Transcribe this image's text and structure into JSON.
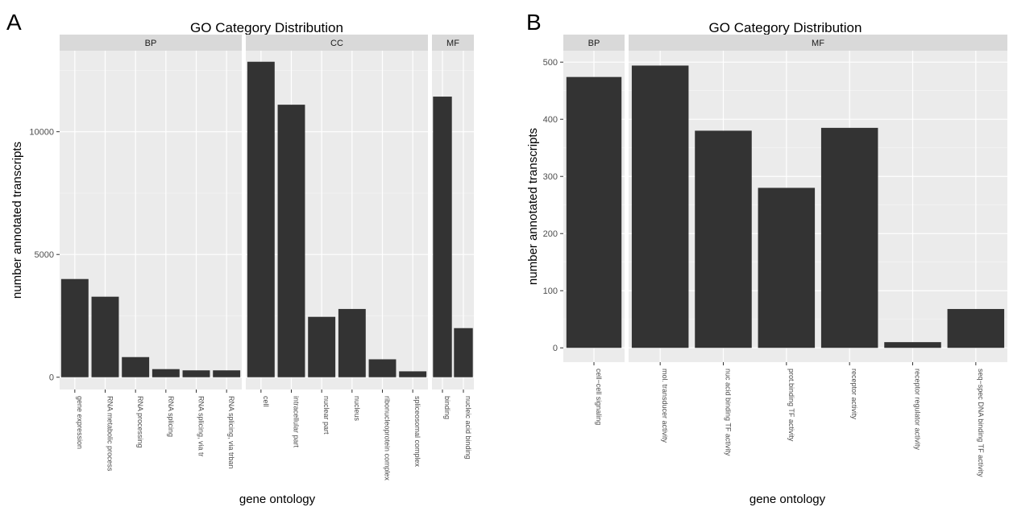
{
  "chart_data": [
    {
      "type": "bar",
      "panel_label": "A",
      "title": "GO Category Distribution",
      "xlabel": "gene ontology",
      "ylabel": "number annotated transcripts",
      "ylim": [
        -500,
        13300
      ],
      "yticks": [
        0,
        5000,
        10000
      ],
      "ytick_labels": [
        "0",
        "5000",
        "10000"
      ],
      "grid": true,
      "facets": [
        {
          "name": "BP",
          "categories": [
            "gene expression",
            "RNA metabolic process",
            "RNA processing",
            "RNA splicing",
            "RNA splicing, via tr",
            "RNA splicing, via trban"
          ],
          "values": [
            4000,
            3280,
            820,
            330,
            280,
            280
          ]
        },
        {
          "name": "CC",
          "categories": [
            "cell",
            "intracellular part",
            "nuclear part",
            "nucleus",
            "ribonucleoprotein complex",
            "spliceosomal complex"
          ],
          "values": [
            12850,
            11100,
            2460,
            2780,
            730,
            240
          ]
        },
        {
          "name": "MF",
          "categories": [
            "binding",
            "nucleic acid binding"
          ],
          "values": [
            11430,
            2000
          ]
        }
      ]
    },
    {
      "type": "bar",
      "panel_label": "B",
      "title": "GO Category Distribution",
      "xlabel": "gene ontology",
      "ylabel": "number annotated transcripts",
      "ylim": [
        -25,
        520
      ],
      "yticks": [
        0,
        100,
        200,
        300,
        400,
        500
      ],
      "ytick_labels": [
        "0",
        "100",
        "200",
        "300",
        "400",
        "500"
      ],
      "grid": true,
      "facets": [
        {
          "name": "BP",
          "categories": [
            "cell−cell signaling"
          ],
          "values": [
            474
          ]
        },
        {
          "name": "MF",
          "categories": [
            "mol. transducer activity",
            "nuc acid binding TF activity",
            "prot.binding TF activity",
            "receptor activity",
            "receptor regulator activity",
            "seq−spec DNA binding TF activity"
          ],
          "values": [
            494,
            380,
            280,
            385,
            10,
            68
          ]
        }
      ]
    }
  ],
  "colors": {
    "panel_background": "#ebebeb",
    "strip_background": "#d9d9d9",
    "bar_fill": "#333333",
    "grid_major": "#ffffff",
    "grid_minor": "#f5f5f5",
    "tick_text": "#4d4d4d"
  }
}
